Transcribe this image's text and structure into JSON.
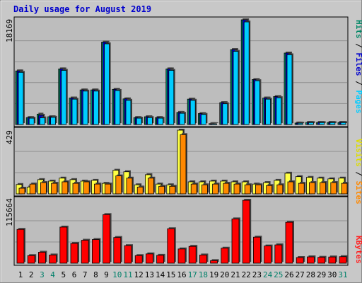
{
  "chart_data": {
    "type": "bar",
    "title": "Daily usage for August 2019",
    "categories": [
      "1",
      "2",
      "3",
      "4",
      "5",
      "6",
      "7",
      "8",
      "9",
      "10",
      "11",
      "12",
      "13",
      "14",
      "15",
      "16",
      "17",
      "18",
      "19",
      "20",
      "21",
      "22",
      "23",
      "24",
      "25",
      "26",
      "27",
      "28",
      "29",
      "30",
      "31"
    ],
    "weekend_days": [
      "3",
      "4",
      "10",
      "11",
      "17",
      "18",
      "24",
      "25",
      "31"
    ],
    "panels": [
      {
        "id": "top",
        "max_label": "18169",
        "ylim": [
          0,
          18169
        ],
        "legend": [
          {
            "text": "Pages",
            "color": "#00ccff"
          },
          {
            "text": "/",
            "color": "#000000"
          },
          {
            "text": "Files",
            "color": "#0000cc"
          },
          {
            "text": "/",
            "color": "#000000"
          },
          {
            "text": "Hits",
            "color": "#008866"
          }
        ],
        "series": [
          {
            "name": "Hits",
            "color": "#00996e",
            "values": [
              9300,
              1200,
              1800,
              1350,
              9650,
              4600,
              6000,
              6000,
              14300,
              6100,
              4450,
              1200,
              1350,
              1200,
              9650,
              2100,
              4400,
              1900,
              150,
              3800,
              13000,
              18169,
              7800,
              4600,
              4850,
              12400,
              260,
              360,
              360,
              360,
              360
            ]
          },
          {
            "name": "Files",
            "color": "#0000cc",
            "values": [
              9300,
              1200,
              1600,
              1350,
              9650,
              4600,
              6000,
              6000,
              14300,
              6100,
              4450,
              1200,
              1350,
              1200,
              9650,
              2100,
              4400,
              1900,
              150,
              3800,
              13000,
              18169,
              7800,
              4600,
              4850,
              12400,
              260,
              360,
              360,
              360,
              360
            ]
          },
          {
            "name": "Pages",
            "color": "#00ccff",
            "values": [
              9050,
              1100,
              1150,
              1250,
              9400,
              4400,
              5800,
              5800,
              14000,
              5900,
              4200,
              1100,
              1200,
              1100,
              9400,
              1950,
              4200,
              1750,
              130,
              3600,
              12700,
              17800,
              7600,
              4400,
              4650,
              12100,
              230,
              330,
              330,
              330,
              330
            ]
          }
        ]
      },
      {
        "id": "mid",
        "max_label": "429",
        "ylim": [
          0,
          429
        ],
        "legend": [
          {
            "text": "Sites",
            "color": "#ff8800"
          },
          {
            "text": "/",
            "color": "#000000"
          },
          {
            "text": "Visits",
            "color": "#eeee00"
          }
        ],
        "series": [
          {
            "name": "Visits",
            "color": "#ffff44",
            "values": [
              63,
              46,
              96,
              86,
              106,
              96,
              86,
              91,
              71,
              159,
              149,
              61,
              129,
              66,
              61,
              429,
              81,
              81,
              86,
              86,
              81,
              81,
              66,
              76,
              91,
              139,
              116,
              111,
              106,
              101,
              106
            ]
          },
          {
            "name": "Sites",
            "color": "#ff8800",
            "values": [
              38,
              66,
              76,
              71,
              81,
              71,
              81,
              66,
              66,
              121,
              106,
              46,
              106,
              51,
              51,
              399,
              66,
              61,
              66,
              71,
              66,
              61,
              61,
              56,
              61,
              81,
              71,
              76,
              76,
              76,
              71
            ]
          }
        ]
      },
      {
        "id": "bot",
        "max_label": "115664",
        "ylim": [
          0,
          115664
        ],
        "legend": [
          {
            "text": "KBytes",
            "color": "#ff2222"
          }
        ],
        "series": [
          {
            "name": "KBytes",
            "color": "#ff0000",
            "values": [
              61400,
              13800,
              19900,
              14900,
              65600,
              35900,
              41700,
              43000,
              88300,
              46700,
              31900,
              13800,
              16900,
              14300,
              62600,
              25900,
              30600,
              14900,
              4700,
              27300,
              80500,
              114300,
              47300,
              31300,
              33300,
              74400,
              10300,
              11500,
              10700,
              11300,
              11900
            ]
          }
        ]
      }
    ]
  }
}
